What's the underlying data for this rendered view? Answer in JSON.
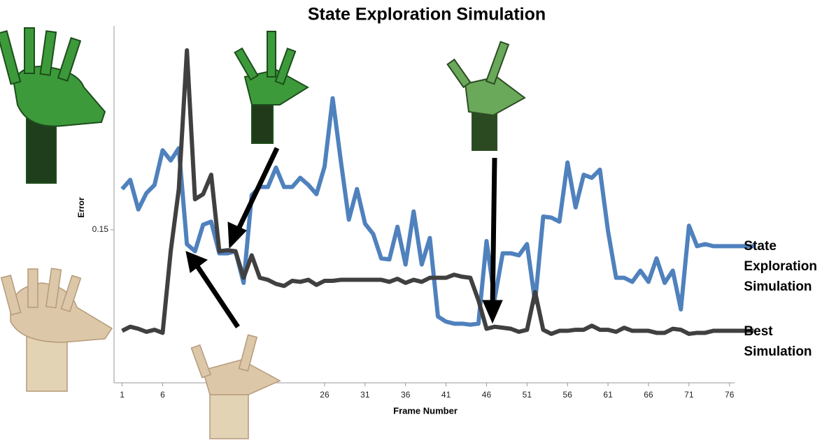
{
  "chart_data": {
    "type": "line",
    "title": "State Exploration Simulation",
    "x_label": "Frame Number",
    "y_label": "Error",
    "x": [
      1,
      2,
      3,
      4,
      5,
      6,
      7,
      8,
      9,
      10,
      11,
      12,
      13,
      14,
      15,
      16,
      17,
      18,
      19,
      20,
      21,
      22,
      23,
      24,
      25,
      26,
      27,
      28,
      29,
      30,
      31,
      32,
      33,
      34,
      35,
      36,
      37,
      38,
      39,
      40,
      41,
      42,
      43,
      44,
      45,
      46,
      47,
      48,
      49,
      50,
      51,
      52,
      53,
      54,
      55,
      56,
      57,
      58,
      59,
      60,
      61,
      62,
      63,
      64,
      65,
      66,
      67,
      68,
      69,
      70,
      71,
      72,
      73,
      74,
      75,
      76,
      77,
      78,
      79
    ],
    "xlim": [
      0,
      80
    ],
    "xticks": [
      1,
      6,
      26,
      31,
      36,
      41,
      46,
      51,
      56,
      61,
      66,
      71,
      76
    ],
    "ylim": [
      0,
      0.35
    ],
    "yticks": [
      0.15
    ],
    "series": [
      {
        "name": "State Exploration Simulation",
        "color": "#4f81bd",
        "values": [
          0.19,
          0.199,
          0.17,
          0.186,
          0.194,
          0.228,
          0.218,
          0.23,
          0.136,
          0.129,
          0.155,
          0.158,
          0.127,
          0.127,
          0.129,
          0.098,
          0.184,
          0.192,
          0.192,
          0.211,
          0.192,
          0.192,
          0.201,
          0.194,
          0.185,
          0.212,
          0.279,
          0.218,
          0.16,
          0.19,
          0.156,
          0.146,
          0.122,
          0.121,
          0.153,
          0.116,
          0.168,
          0.116,
          0.142,
          0.065,
          0.06,
          0.058,
          0.058,
          0.057,
          0.058,
          0.139,
          0.082,
          0.127,
          0.127,
          0.125,
          0.136,
          0.079,
          0.163,
          0.162,
          0.158,
          0.216,
          0.172,
          0.204,
          0.201,
          0.209,
          0.149,
          0.103,
          0.103,
          0.099,
          0.11,
          0.099,
          0.122,
          0.098,
          0.11,
          0.072,
          0.154,
          0.134,
          0.136,
          0.134,
          0.134,
          0.134,
          0.134,
          0.134,
          0.134
        ]
      },
      {
        "name": "Best Simulation",
        "color": "#404040",
        "values": [
          0.051,
          0.055,
          0.053,
          0.05,
          0.052,
          0.049,
          0.129,
          0.19,
          0.326,
          0.18,
          0.185,
          0.204,
          0.129,
          0.13,
          0.129,
          0.103,
          0.125,
          0.103,
          0.101,
          0.097,
          0.095,
          0.1,
          0.099,
          0.101,
          0.096,
          0.1,
          0.1,
          0.101,
          0.101,
          0.101,
          0.101,
          0.101,
          0.101,
          0.099,
          0.102,
          0.098,
          0.101,
          0.099,
          0.103,
          0.103,
          0.103,
          0.106,
          0.104,
          0.103,
          0.081,
          0.053,
          0.055,
          0.054,
          0.053,
          0.05,
          0.052,
          0.089,
          0.052,
          0.048,
          0.051,
          0.051,
          0.052,
          0.052,
          0.056,
          0.052,
          0.052,
          0.05,
          0.054,
          0.051,
          0.051,
          0.051,
          0.049,
          0.049,
          0.053,
          0.052,
          0.048,
          0.049,
          0.049,
          0.051,
          0.051,
          0.051,
          0.051,
          0.051,
          0.051
        ]
      }
    ]
  }
}
